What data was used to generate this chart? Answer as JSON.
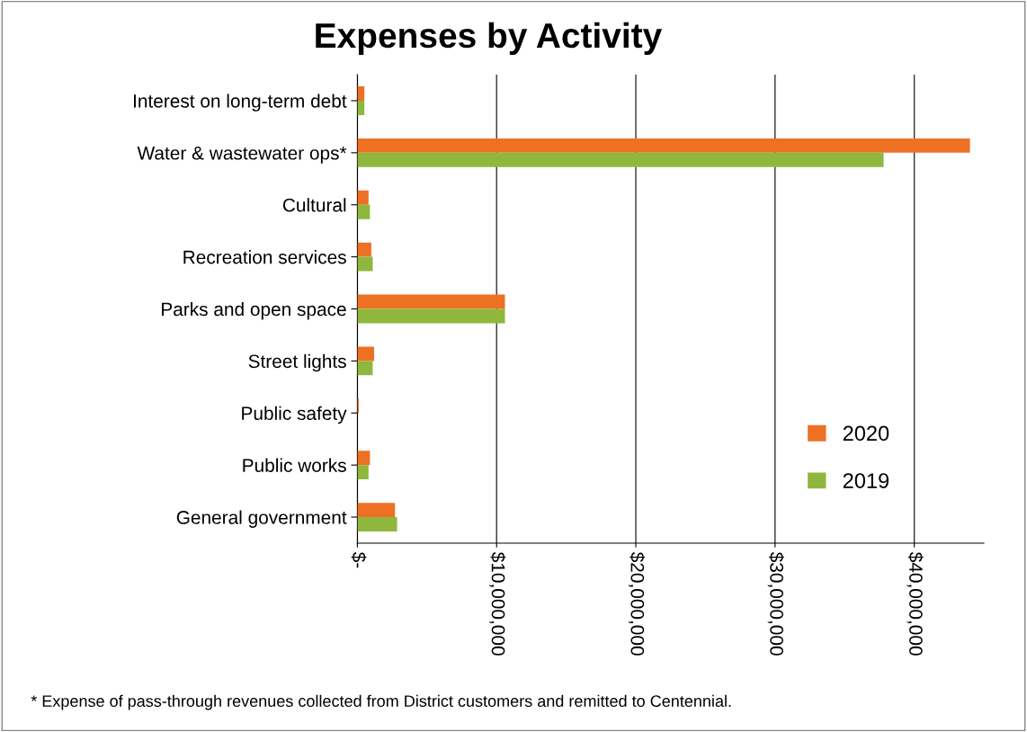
{
  "chart_data": {
    "type": "bar",
    "orientation": "horizontal",
    "title": "Expenses by Activity",
    "categories": [
      "Interest on long-term debt",
      "Water & wastewater ops*",
      "Cultural",
      "Recreation services",
      "Parks and open space",
      "Street lights",
      "Public safety",
      "Public works",
      "General government"
    ],
    "series": [
      {
        "name": "2020",
        "color": "#ed7023",
        "values": [
          500000,
          44000000,
          800000,
          1000000,
          10600000,
          1200000,
          100000,
          900000,
          2700000
        ]
      },
      {
        "name": "2019",
        "color": "#8fb73e",
        "values": [
          500000,
          37800000,
          900000,
          1100000,
          10600000,
          1100000,
          null,
          800000,
          2850000
        ]
      }
    ],
    "xlim": [
      0,
      45000000
    ],
    "xticks": [
      {
        "value": 0,
        "label": "$-"
      },
      {
        "value": 10000000,
        "label": "$10,000,000"
      },
      {
        "value": 20000000,
        "label": "$20,000,000"
      },
      {
        "value": 30000000,
        "label": "$30,000,000"
      },
      {
        "value": 40000000,
        "label": "$40,000,000"
      }
    ],
    "grid": "x",
    "legend": "bottom right",
    "annotations": [
      "* Expense of pass-through revenues collected from District customers and remitted to Centennial."
    ]
  }
}
